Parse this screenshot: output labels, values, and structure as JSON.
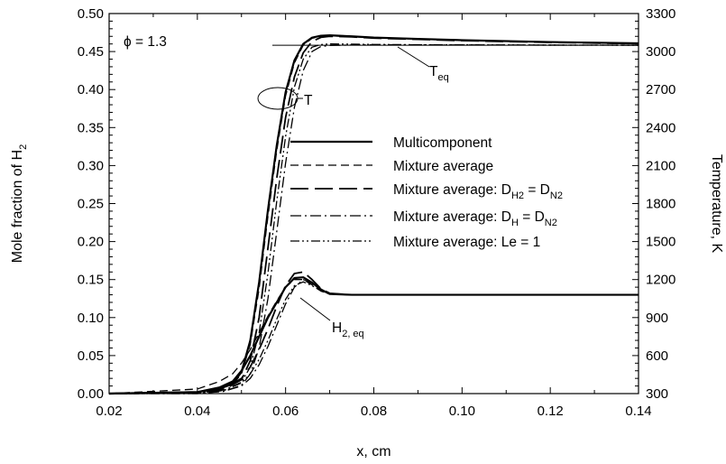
{
  "chart_data": {
    "type": "line",
    "x_axis": {
      "label": "x, cm",
      "range": [
        0.02,
        0.14
      ],
      "ticks": [
        0.02,
        0.04,
        0.06,
        0.08,
        0.1,
        0.12,
        0.14
      ],
      "tick_labels": [
        "0.02",
        "0.04",
        "0.06",
        "0.08",
        "0.10",
        "0.12",
        "0.14"
      ]
    },
    "y_left": {
      "label_main": "Mole fraction of H",
      "label_sub": "2",
      "range": [
        0.0,
        0.5
      ],
      "ticks": [
        0.0,
        0.05,
        0.1,
        0.15,
        0.2,
        0.25,
        0.3,
        0.35,
        0.4,
        0.45,
        0.5
      ],
      "tick_labels": [
        "0.00",
        "0.05",
        "0.10",
        "0.15",
        "0.20",
        "0.25",
        "0.30",
        "0.35",
        "0.40",
        "0.45",
        "0.50"
      ]
    },
    "y_right": {
      "label": "Temperature, K",
      "range": [
        300,
        3300
      ],
      "ticks": [
        300,
        600,
        900,
        1200,
        1500,
        1800,
        2100,
        2400,
        2700,
        3000,
        3300
      ],
      "tick_labels": [
        "300",
        "600",
        "900",
        "1200",
        "1500",
        "1800",
        "2100",
        "2400",
        "2700",
        "3000",
        "3300"
      ]
    },
    "grid": false,
    "legend": {
      "placement": "center-right",
      "items": [
        {
          "key": "multicomponent",
          "main": "Multicomponent",
          "sub1": "",
          "mid": "",
          "sub2": "",
          "tail": ""
        },
        {
          "key": "mixture_average",
          "main": "Mixture average",
          "sub1": "",
          "mid": "",
          "sub2": "",
          "tail": ""
        },
        {
          "key": "mixavg_dh2",
          "main": "Mixture average: D",
          "sub1": "H2",
          "mid": " = D",
          "sub2": "N2",
          "tail": ""
        },
        {
          "key": "mixavg_dh",
          "main": "Mixture average: D",
          "sub1": "H",
          "mid": " = D",
          "sub2": "N2",
          "tail": ""
        },
        {
          "key": "mixavg_le1",
          "main": "Mixture average: Le = 1",
          "sub1": "",
          "mid": "",
          "sub2": "",
          "tail": ""
        }
      ]
    },
    "annotations": {
      "phi": "ϕ = 1.3",
      "T_label": "T",
      "Teq_main": "T",
      "Teq_sub": "eq",
      "H2eq_main": "H",
      "H2eq_sub": "2, eq"
    },
    "equilibrium": {
      "T_eq": 3050,
      "T_eq_range": [
        0.057,
        0.14
      ],
      "H2_eq": 0.13
    },
    "series": [
      {
        "name": "Multicomponent",
        "key": "multicomponent",
        "temperature": {
          "x": [
            0.02,
            0.04,
            0.045,
            0.048,
            0.05,
            0.052,
            0.054,
            0.056,
            0.058,
            0.06,
            0.062,
            0.064,
            0.066,
            0.068,
            0.07,
            0.075,
            0.08,
            0.09,
            0.1,
            0.12,
            0.14
          ],
          "y": [
            300,
            312,
            340,
            380,
            470,
            720,
            1180,
            1750,
            2260,
            2680,
            2930,
            3060,
            3110,
            3125,
            3128,
            3120,
            3110,
            3100,
            3090,
            3075,
            3065
          ]
        },
        "h2": {
          "x": [
            0.02,
            0.04,
            0.045,
            0.048,
            0.05,
            0.052,
            0.054,
            0.056,
            0.058,
            0.06,
            0.062,
            0.064,
            0.066,
            0.068,
            0.07,
            0.075,
            0.08,
            0.1,
            0.12,
            0.14
          ],
          "y": [
            0.0,
            0.002,
            0.008,
            0.016,
            0.03,
            0.05,
            0.075,
            0.1,
            0.12,
            0.14,
            0.152,
            0.153,
            0.146,
            0.137,
            0.131,
            0.13,
            0.13,
            0.13,
            0.13,
            0.13
          ]
        }
      },
      {
        "name": "Mixture average",
        "key": "mixture_average",
        "temperature": {
          "x": [
            0.02,
            0.04,
            0.045,
            0.048,
            0.05,
            0.052,
            0.054,
            0.056,
            0.058,
            0.06,
            0.062,
            0.064,
            0.066,
            0.068,
            0.07,
            0.075,
            0.08,
            0.09,
            0.1,
            0.12,
            0.14
          ],
          "y": [
            300,
            310,
            335,
            372,
            455,
            690,
            1130,
            1700,
            2220,
            2650,
            2910,
            3050,
            3105,
            3120,
            3124,
            3118,
            3108,
            3098,
            3088,
            3074,
            3064
          ]
        },
        "h2": {
          "x": [
            0.02,
            0.04,
            0.045,
            0.048,
            0.05,
            0.052,
            0.054,
            0.056,
            0.058,
            0.06,
            0.062,
            0.064,
            0.066,
            0.068,
            0.07,
            0.075,
            0.08,
            0.1,
            0.12,
            0.14
          ],
          "y": [
            0.0,
            0.006,
            0.016,
            0.026,
            0.04,
            0.058,
            0.08,
            0.102,
            0.122,
            0.14,
            0.15,
            0.15,
            0.143,
            0.135,
            0.131,
            0.13,
            0.13,
            0.13,
            0.13,
            0.13
          ]
        }
      },
      {
        "name": "Mixture average: D_H2 = D_N2",
        "key": "mixavg_dh2",
        "temperature": {
          "x": [
            0.02,
            0.04,
            0.046,
            0.05,
            0.052,
            0.054,
            0.056,
            0.058,
            0.06,
            0.062,
            0.064,
            0.066,
            0.068,
            0.07,
            0.075,
            0.08,
            0.09,
            0.1,
            0.12,
            0.14
          ],
          "y": [
            300,
            306,
            330,
            410,
            560,
            900,
            1450,
            2000,
            2480,
            2800,
            2990,
            3080,
            3112,
            3120,
            3116,
            3106,
            3096,
            3086,
            3072,
            3062
          ]
        },
        "h2": {
          "x": [
            0.02,
            0.04,
            0.046,
            0.05,
            0.052,
            0.054,
            0.056,
            0.058,
            0.06,
            0.062,
            0.064,
            0.066,
            0.068,
            0.07,
            0.075,
            0.08,
            0.1,
            0.12,
            0.14
          ],
          "y": [
            0.0,
            0.001,
            0.006,
            0.02,
            0.035,
            0.058,
            0.085,
            0.115,
            0.142,
            0.158,
            0.16,
            0.15,
            0.138,
            0.132,
            0.13,
            0.13,
            0.13,
            0.13,
            0.13
          ]
        }
      },
      {
        "name": "Mixture average: D_H = D_N2",
        "key": "mixavg_dh",
        "temperature": {
          "x": [
            0.02,
            0.04,
            0.046,
            0.05,
            0.052,
            0.054,
            0.056,
            0.058,
            0.06,
            0.062,
            0.064,
            0.066,
            0.068,
            0.07,
            0.075,
            0.08,
            0.09,
            0.1,
            0.12,
            0.14
          ],
          "y": [
            300,
            302,
            318,
            365,
            455,
            660,
            1050,
            1580,
            2120,
            2560,
            2850,
            3000,
            3040,
            3048,
            3052,
            3053,
            3053,
            3052,
            3051,
            3050
          ]
        },
        "h2": {
          "x": [
            0.02,
            0.04,
            0.046,
            0.05,
            0.052,
            0.054,
            0.056,
            0.058,
            0.06,
            0.062,
            0.064,
            0.066,
            0.068,
            0.07,
            0.075,
            0.08,
            0.1,
            0.12,
            0.14
          ],
          "y": [
            0.0,
            0.0,
            0.003,
            0.01,
            0.02,
            0.038,
            0.062,
            0.09,
            0.118,
            0.14,
            0.15,
            0.145,
            0.136,
            0.131,
            0.13,
            0.13,
            0.13,
            0.13,
            0.13
          ]
        }
      },
      {
        "name": "Mixture average: Le = 1",
        "key": "mixavg_le1",
        "temperature": {
          "x": [
            0.02,
            0.04,
            0.046,
            0.05,
            0.052,
            0.054,
            0.056,
            0.058,
            0.06,
            0.062,
            0.064,
            0.066,
            0.068,
            0.07,
            0.075,
            0.08,
            0.09,
            0.1,
            0.12,
            0.14
          ],
          "y": [
            300,
            304,
            325,
            390,
            510,
            780,
            1250,
            1820,
            2330,
            2720,
            2940,
            3035,
            3055,
            3060,
            3058,
            3056,
            3054,
            3053,
            3051,
            3050
          ]
        },
        "h2": {
          "x": [
            0.02,
            0.04,
            0.046,
            0.05,
            0.052,
            0.054,
            0.056,
            0.058,
            0.06,
            0.062,
            0.064,
            0.066,
            0.068,
            0.07,
            0.075,
            0.08,
            0.1,
            0.12,
            0.14
          ],
          "y": [
            0.0,
            0.0,
            0.004,
            0.014,
            0.026,
            0.045,
            0.07,
            0.098,
            0.124,
            0.142,
            0.147,
            0.142,
            0.135,
            0.131,
            0.13,
            0.13,
            0.13,
            0.13,
            0.13
          ]
        }
      }
    ],
    "styles": {
      "multicomponent": {
        "dash": "",
        "width": 2.2
      },
      "mixture_average": {
        "dash": "9 5",
        "width": 1.3
      },
      "mixavg_dh2": {
        "dash": "20 7",
        "width": 1.8
      },
      "mixavg_dh": {
        "dash": "12 4 2 4",
        "width": 1.3
      },
      "mixavg_le1": {
        "dash": "10 3 2 3 2 3",
        "width": 1.3
      }
    },
    "line_color": "#000000"
  }
}
